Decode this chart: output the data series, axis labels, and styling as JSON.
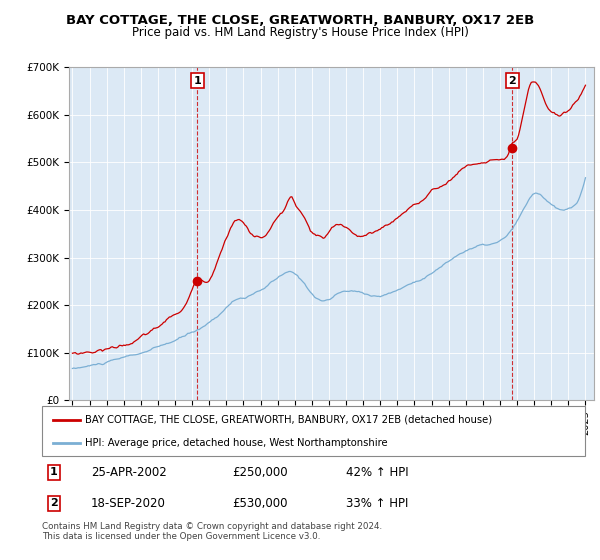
{
  "title": "BAY COTTAGE, THE CLOSE, GREATWORTH, BANBURY, OX17 2EB",
  "subtitle": "Price paid vs. HM Land Registry's House Price Index (HPI)",
  "title_fontsize": 9.5,
  "subtitle_fontsize": 8.5,
  "background_color": "#ffffff",
  "plot_bg_color": "#dce9f5",
  "grid_color": "#ffffff",
  "ylim": [
    0,
    700000
  ],
  "yticks": [
    0,
    100000,
    200000,
    300000,
    400000,
    500000,
    600000,
    700000
  ],
  "ytick_labels": [
    "£0",
    "£100K",
    "£200K",
    "£300K",
    "£400K",
    "£500K",
    "£600K",
    "£700K"
  ],
  "xlim_start": 1994.8,
  "xlim_end": 2025.5,
  "xtick_years": [
    1995,
    1996,
    1997,
    1998,
    1999,
    2000,
    2001,
    2002,
    2003,
    2004,
    2005,
    2006,
    2007,
    2008,
    2009,
    2010,
    2011,
    2012,
    2013,
    2014,
    2015,
    2016,
    2017,
    2018,
    2019,
    2020,
    2021,
    2022,
    2023,
    2024,
    2025
  ],
  "sale1_x": 2002.3,
  "sale1_y": 250000,
  "sale1_label": "1",
  "sale2_x": 2020.72,
  "sale2_y": 530000,
  "sale2_label": "2",
  "sale_color": "#cc0000",
  "hpi_color": "#7bafd4",
  "legend_entry1": "BAY COTTAGE, THE CLOSE, GREATWORTH, BANBURY, OX17 2EB (detached house)",
  "legend_entry2": "HPI: Average price, detached house, West Northamptonshire",
  "annotation1_date": "25-APR-2002",
  "annotation1_price": "£250,000",
  "annotation1_hpi": "42% ↑ HPI",
  "annotation2_date": "18-SEP-2020",
  "annotation2_price": "£530,000",
  "annotation2_hpi": "33% ↑ HPI",
  "footer": "Contains HM Land Registry data © Crown copyright and database right 2024.\nThis data is licensed under the Open Government Licence v3.0."
}
